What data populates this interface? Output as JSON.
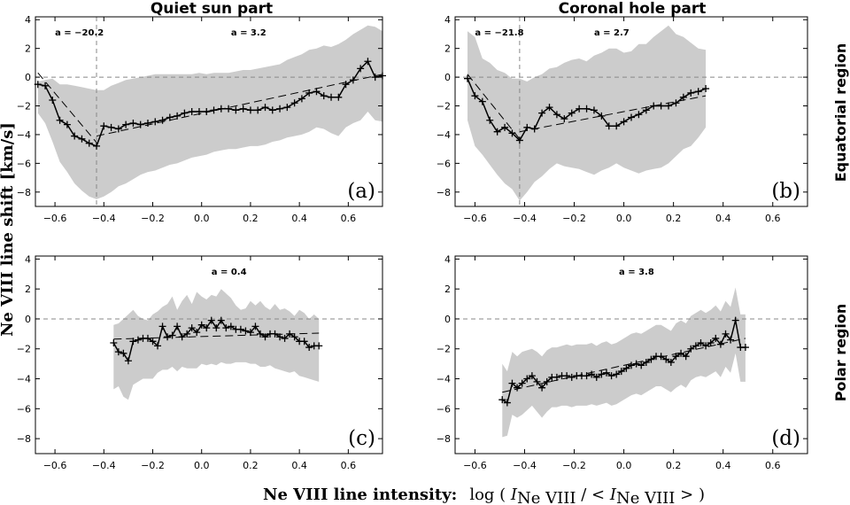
{
  "figure": {
    "col_titles": [
      "Quiet sun part",
      "Coronal hole part"
    ],
    "row_titles": [
      "Equatorial region",
      "Polar region"
    ],
    "ylabel": "Ne VIII line shift [km/s]",
    "xlabel_bold": "Ne VIII line intensity:",
    "xlabel_math": {
      "prefix": "log ( ",
      "I1": "I",
      "sub1": "Ne VIII",
      "mid": " / < ",
      "I2": "I",
      "sub2": "Ne VIII",
      "suffix": " > )"
    }
  },
  "chart_data": [
    {
      "id": "a",
      "label": "(a)",
      "type": "line",
      "xlim": [
        -0.68,
        0.74
      ],
      "ylim": [
        -9,
        4.2
      ],
      "x_ticks": [
        -0.6,
        -0.4,
        -0.2,
        0.0,
        0.2,
        0.4,
        0.6
      ],
      "x_tick_labels": [
        "−0.6",
        "−0.4",
        "−0.2",
        "0.0",
        "0.2",
        "0.4",
        "0.6"
      ],
      "y_ticks": [
        -8,
        -6,
        -4,
        -2,
        0,
        2,
        4
      ],
      "y_tick_labels": [
        "−8",
        "−6",
        "−4",
        "−2",
        "0",
        "2",
        "4"
      ],
      "slopes": [
        {
          "text": "a = −20.2",
          "x": -0.6
        },
        {
          "text": "a = 3.2",
          "x": 0.12
        }
      ],
      "vline_x": -0.43,
      "x": [
        -0.67,
        -0.64,
        -0.61,
        -0.58,
        -0.55,
        -0.52,
        -0.49,
        -0.46,
        -0.43,
        -0.4,
        -0.37,
        -0.34,
        -0.31,
        -0.28,
        -0.25,
        -0.22,
        -0.19,
        -0.16,
        -0.13,
        -0.1,
        -0.07,
        -0.04,
        -0.01,
        0.02,
        0.05,
        0.08,
        0.11,
        0.14,
        0.17,
        0.2,
        0.23,
        0.26,
        0.29,
        0.32,
        0.35,
        0.38,
        0.41,
        0.44,
        0.47,
        0.5,
        0.53,
        0.56,
        0.59,
        0.62,
        0.65,
        0.68,
        0.71,
        0.74
      ],
      "y": [
        -0.5,
        -0.6,
        -1.6,
        -3.0,
        -3.3,
        -4.1,
        -4.3,
        -4.6,
        -4.8,
        -3.4,
        -3.5,
        -3.6,
        -3.3,
        -3.2,
        -3.3,
        -3.2,
        -3.1,
        -3.0,
        -2.8,
        -2.7,
        -2.5,
        -2.4,
        -2.4,
        -2.4,
        -2.3,
        -2.2,
        -2.2,
        -2.3,
        -2.2,
        -2.3,
        -2.3,
        -2.1,
        -2.3,
        -2.2,
        -2.1,
        -1.8,
        -1.5,
        -1.1,
        -1.0,
        -1.3,
        -1.4,
        -1.4,
        -0.5,
        -0.2,
        0.6,
        1.1,
        0.0,
        0.1
      ],
      "upper": [
        -0.3,
        -0.2,
        -0.1,
        -0.5,
        -0.5,
        -0.6,
        -0.7,
        -0.8,
        -0.9,
        -0.9,
        -0.6,
        -0.4,
        -0.2,
        -0.1,
        0.0,
        0.1,
        0.2,
        0.2,
        0.2,
        0.2,
        0.2,
        0.2,
        0.3,
        0.2,
        0.3,
        0.3,
        0.3,
        0.4,
        0.5,
        0.5,
        0.6,
        0.7,
        0.8,
        0.9,
        1.2,
        1.4,
        1.6,
        1.9,
        2.0,
        2.2,
        2.1,
        2.3,
        2.6,
        3.0,
        3.3,
        3.6,
        3.5,
        3.2
      ],
      "lower": [
        -2.5,
        -3.2,
        -4.5,
        -5.9,
        -6.6,
        -7.4,
        -7.9,
        -8.3,
        -8.5,
        -8.3,
        -8.0,
        -7.6,
        -7.4,
        -7.1,
        -6.8,
        -6.6,
        -6.5,
        -6.3,
        -6.1,
        -6.0,
        -5.8,
        -5.6,
        -5.5,
        -5.4,
        -5.2,
        -5.1,
        -5.0,
        -5.0,
        -4.9,
        -4.8,
        -4.8,
        -4.7,
        -4.5,
        -4.4,
        -4.2,
        -4.1,
        -4.0,
        -3.8,
        -3.5,
        -3.6,
        -3.9,
        -4.1,
        -3.5,
        -3.2,
        -3.0,
        -2.4,
        -3.0,
        -3.1
      ],
      "fit_lines": [
        {
          "x": [
            -0.67,
            -0.43
          ],
          "y": [
            0.3,
            -4.55
          ]
        },
        {
          "x": [
            -0.43,
            0.74
          ],
          "y": [
            -4.1,
            0.2
          ]
        }
      ]
    },
    {
      "id": "b",
      "label": "(b)",
      "type": "line",
      "xlim": [
        -0.68,
        0.74
      ],
      "ylim": [
        -9,
        4.2
      ],
      "x_ticks": [
        -0.6,
        -0.4,
        -0.2,
        0.0,
        0.2,
        0.4,
        0.6
      ],
      "x_tick_labels": [
        "−0.6",
        "−0.4",
        "−0.2",
        "0.0",
        "0.2",
        "0.4",
        "0.6"
      ],
      "y_ticks": [
        -8,
        -6,
        -4,
        -2,
        0,
        2,
        4
      ],
      "y_tick_labels": [
        "−8",
        "−6",
        "−4",
        "−2",
        "0",
        "2",
        "4"
      ],
      "slopes": [
        {
          "text": "a = −21.8",
          "x": -0.6
        },
        {
          "text": "a = 2.7",
          "x": -0.12
        }
      ],
      "vline_x": -0.42,
      "x": [
        -0.63,
        -0.6,
        -0.57,
        -0.54,
        -0.51,
        -0.48,
        -0.45,
        -0.42,
        -0.39,
        -0.36,
        -0.33,
        -0.3,
        -0.27,
        -0.24,
        -0.21,
        -0.18,
        -0.15,
        -0.12,
        -0.09,
        -0.06,
        -0.03,
        0.0,
        0.03,
        0.06,
        0.09,
        0.12,
        0.15,
        0.18,
        0.21,
        0.24,
        0.27,
        0.3,
        0.33
      ],
      "y": [
        -0.1,
        -1.3,
        -1.7,
        -3.0,
        -3.8,
        -3.5,
        -3.9,
        -4.4,
        -3.5,
        -3.6,
        -2.5,
        -2.1,
        -2.6,
        -2.9,
        -2.5,
        -2.2,
        -2.2,
        -2.3,
        -2.7,
        -3.4,
        -3.4,
        -3.1,
        -2.8,
        -2.6,
        -2.3,
        -2.0,
        -2.0,
        -2.0,
        -1.8,
        -1.4,
        -1.1,
        -1.0,
        -0.8
      ],
      "upper": [
        3.2,
        2.8,
        1.3,
        1.0,
        0.5,
        0.3,
        -0.1,
        -0.1,
        -0.3,
        0.0,
        0.2,
        0.6,
        0.7,
        1.0,
        1.2,
        1.3,
        1.1,
        1.5,
        1.7,
        2.0,
        2.0,
        1.7,
        1.8,
        2.3,
        2.3,
        2.8,
        3.2,
        3.6,
        3.0,
        2.8,
        2.4,
        2.0,
        1.9
      ],
      "lower": [
        -3.0,
        -4.8,
        -5.4,
        -6.1,
        -6.8,
        -7.4,
        -7.8,
        -8.6,
        -8.0,
        -7.3,
        -6.9,
        -6.4,
        -6.0,
        -6.2,
        -6.3,
        -6.4,
        -6.6,
        -6.8,
        -6.5,
        -6.3,
        -6.0,
        -6.3,
        -6.5,
        -6.7,
        -6.5,
        -6.4,
        -6.3,
        -6.0,
        -5.5,
        -5.0,
        -4.8,
        -4.2,
        -3.5
      ],
      "fit_lines": [
        {
          "x": [
            -0.63,
            -0.42
          ],
          "y": [
            0.2,
            -4.3
          ]
        },
        {
          "x": [
            -0.42,
            0.33
          ],
          "y": [
            -3.8,
            -1.3
          ]
        }
      ]
    },
    {
      "id": "c",
      "label": "(c)",
      "type": "line",
      "xlim": [
        -0.68,
        0.74
      ],
      "ylim": [
        -9,
        4.2
      ],
      "x_ticks": [
        -0.6,
        -0.4,
        -0.2,
        0.0,
        0.2,
        0.4,
        0.6
      ],
      "x_tick_labels": [
        "−0.6",
        "−0.4",
        "−0.2",
        "0.0",
        "0.2",
        "0.4",
        "0.6"
      ],
      "y_ticks": [
        -8,
        -6,
        -4,
        -2,
        0,
        2,
        4
      ],
      "y_tick_labels": [
        "−8",
        "−6",
        "−4",
        "−2",
        "0",
        "2",
        "4"
      ],
      "slopes": [
        {
          "text": "a = 0.4",
          "x": 0.04
        }
      ],
      "vline_x": null,
      "x": [
        -0.36,
        -0.34,
        -0.32,
        -0.3,
        -0.28,
        -0.26,
        -0.24,
        -0.22,
        -0.2,
        -0.18,
        -0.16,
        -0.14,
        -0.12,
        -0.1,
        -0.08,
        -0.06,
        -0.04,
        -0.02,
        0.0,
        0.02,
        0.04,
        0.06,
        0.08,
        0.1,
        0.12,
        0.14,
        0.16,
        0.18,
        0.2,
        0.22,
        0.24,
        0.26,
        0.28,
        0.3,
        0.32,
        0.34,
        0.36,
        0.38,
        0.4,
        0.42,
        0.44,
        0.46,
        0.48
      ],
      "y": [
        -1.6,
        -2.2,
        -2.3,
        -2.8,
        -1.5,
        -1.4,
        -1.3,
        -1.3,
        -1.5,
        -1.8,
        -0.5,
        -1.2,
        -1.1,
        -0.5,
        -1.2,
        -1.0,
        -0.6,
        -0.9,
        -0.4,
        -0.6,
        -0.1,
        -0.6,
        -0.1,
        -0.6,
        -0.5,
        -0.7,
        -0.7,
        -0.8,
        -0.9,
        -0.5,
        -1.0,
        -1.2,
        -1.0,
        -1.0,
        -1.2,
        -1.3,
        -1.0,
        -1.2,
        -1.5,
        -1.5,
        -1.9,
        -1.8,
        -1.8
      ],
      "upper": [
        -0.4,
        -0.3,
        0.0,
        0.3,
        0.6,
        0.2,
        0.0,
        -0.1,
        0.3,
        0.5,
        0.8,
        1.0,
        1.5,
        0.6,
        1.2,
        1.6,
        1.0,
        1.8,
        1.5,
        1.3,
        1.6,
        1.5,
        2.0,
        1.7,
        1.4,
        0.9,
        0.6,
        0.7,
        1.2,
        0.9,
        1.2,
        0.8,
        0.6,
        1.0,
        0.6,
        0.7,
        0.5,
        0.2,
        0.6,
        0.4,
        0.0,
        0.3,
        0.0
      ],
      "lower": [
        -4.7,
        -4.5,
        -5.2,
        -5.4,
        -4.4,
        -4.2,
        -4.0,
        -4.0,
        -4.0,
        -3.6,
        -3.4,
        -3.4,
        -3.2,
        -3.5,
        -3.2,
        -3.3,
        -3.3,
        -3.3,
        -3.0,
        -3.1,
        -3.0,
        -3.1,
        -2.9,
        -3.0,
        -3.0,
        -2.9,
        -2.9,
        -2.9,
        -3.0,
        -3.0,
        -3.2,
        -3.2,
        -3.1,
        -3.3,
        -3.4,
        -3.5,
        -3.6,
        -3.5,
        -3.8,
        -3.9,
        -4.0,
        -4.1,
        -4.2
      ],
      "fit_lines": [
        {
          "x": [
            -0.36,
            0.48
          ],
          "y": [
            -1.35,
            -0.95
          ]
        }
      ]
    },
    {
      "id": "d",
      "label": "(d)",
      "type": "line",
      "xlim": [
        -0.68,
        0.74
      ],
      "ylim": [
        -9,
        4.2
      ],
      "x_ticks": [
        -0.6,
        -0.4,
        -0.2,
        0.0,
        0.2,
        0.4,
        0.6
      ],
      "x_tick_labels": [
        "−0.6",
        "−0.4",
        "−0.2",
        "0.0",
        "0.2",
        "0.4",
        "0.6"
      ],
      "y_ticks": [
        -8,
        -6,
        -4,
        -2,
        0,
        2,
        4
      ],
      "y_tick_labels": [
        "−8",
        "−6",
        "−4",
        "−2",
        "0",
        "2",
        "4"
      ],
      "slopes": [
        {
          "text": "a = 3.8",
          "x": -0.02
        }
      ],
      "vline_x": null,
      "x": [
        -0.49,
        -0.47,
        -0.45,
        -0.43,
        -0.41,
        -0.39,
        -0.37,
        -0.35,
        -0.33,
        -0.31,
        -0.29,
        -0.27,
        -0.25,
        -0.23,
        -0.21,
        -0.19,
        -0.17,
        -0.15,
        -0.13,
        -0.11,
        -0.09,
        -0.07,
        -0.05,
        -0.03,
        -0.01,
        0.01,
        0.03,
        0.05,
        0.07,
        0.09,
        0.11,
        0.13,
        0.15,
        0.17,
        0.19,
        0.21,
        0.23,
        0.25,
        0.27,
        0.29,
        0.31,
        0.33,
        0.35,
        0.37,
        0.39,
        0.41,
        0.43,
        0.45,
        0.47,
        0.49
      ],
      "y": [
        -5.4,
        -5.6,
        -4.3,
        -4.6,
        -4.3,
        -4.0,
        -3.8,
        -4.2,
        -4.6,
        -4.2,
        -3.9,
        -3.9,
        -3.8,
        -3.8,
        -3.9,
        -3.8,
        -3.8,
        -3.8,
        -3.7,
        -3.9,
        -3.7,
        -3.6,
        -3.8,
        -3.7,
        -3.5,
        -3.3,
        -3.1,
        -3.0,
        -3.1,
        -2.9,
        -2.7,
        -2.5,
        -2.5,
        -2.7,
        -2.9,
        -2.5,
        -2.3,
        -2.5,
        -2.0,
        -1.8,
        -1.6,
        -1.8,
        -1.6,
        -1.3,
        -1.7,
        -1.0,
        -1.4,
        -0.1,
        -1.9,
        -1.9
      ],
      "upper": [
        -3.0,
        -3.5,
        -2.2,
        -2.5,
        -2.2,
        -2.1,
        -2.0,
        -2.2,
        -2.5,
        -2.1,
        -1.9,
        -1.9,
        -1.8,
        -1.7,
        -1.8,
        -1.7,
        -1.7,
        -1.7,
        -1.6,
        -1.8,
        -1.6,
        -1.5,
        -1.7,
        -1.6,
        -1.4,
        -1.2,
        -1.0,
        -0.9,
        -1.0,
        -0.8,
        -0.6,
        -0.4,
        -0.4,
        -0.6,
        -0.8,
        -0.3,
        -0.1,
        -0.3,
        0.2,
        0.4,
        0.6,
        0.4,
        0.6,
        0.9,
        0.5,
        1.2,
        0.8,
        2.1,
        0.3,
        0.3
      ],
      "lower": [
        -7.9,
        -7.8,
        -6.4,
        -6.6,
        -6.4,
        -6.1,
        -5.8,
        -6.2,
        -6.6,
        -6.2,
        -5.9,
        -5.9,
        -5.8,
        -5.8,
        -5.9,
        -5.8,
        -5.8,
        -5.8,
        -5.7,
        -5.8,
        -5.7,
        -5.6,
        -5.8,
        -5.7,
        -5.5,
        -5.3,
        -5.1,
        -5.0,
        -5.1,
        -4.9,
        -4.7,
        -4.5,
        -4.5,
        -4.7,
        -4.9,
        -4.6,
        -4.4,
        -4.6,
        -4.1,
        -3.9,
        -3.8,
        -3.9,
        -3.7,
        -3.5,
        -3.9,
        -3.2,
        -3.6,
        -2.3,
        -4.2,
        -4.2
      ],
      "fit_lines": [
        {
          "x": [
            -0.49,
            0.49
          ],
          "y": [
            -4.9,
            -1.3
          ]
        }
      ]
    }
  ]
}
